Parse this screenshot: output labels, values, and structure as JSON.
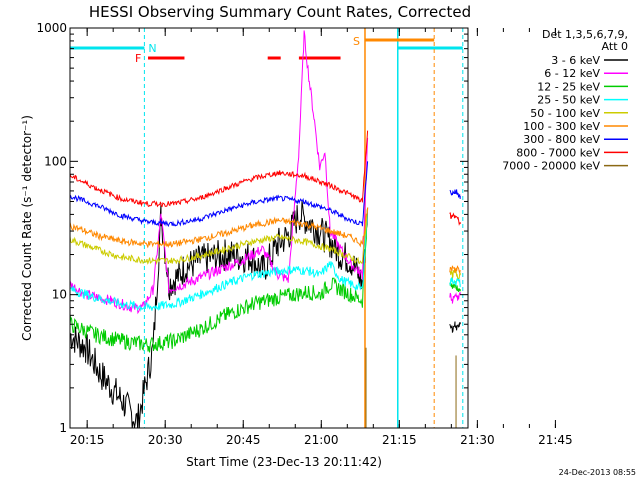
{
  "chart_data": {
    "type": "line",
    "title": "HESSI Observing Summary Count Rates, Corrected",
    "xlabel": "Start Time (23-Dec-13 20:11:42)",
    "ylabel": "Corrected Count Rate (s⁻¹ detector⁻¹)",
    "yscale": "log",
    "xlim_minutes": [
      0,
      76.5
    ],
    "ylim": [
      1,
      1000
    ],
    "x_ticks": [
      "20:15",
      "20:30",
      "20:45",
      "21:00",
      "21:15",
      "21:30",
      "21:45"
    ],
    "y_ticks": [
      "1",
      "10",
      "100",
      "1000"
    ],
    "legend_header": [
      "Det 1,3,5,6,7,9,",
      "Att 0"
    ],
    "series": [
      {
        "name": "3 - 6 keV",
        "color": "#000000",
        "x": [
          0,
          3,
          6,
          10,
          13,
          16,
          17.5,
          19,
          21,
          22,
          25,
          30,
          35,
          37,
          40,
          42,
          44,
          46,
          48,
          50,
          52,
          54,
          55.5,
          56.2,
          57.2
        ],
        "y": [
          5,
          4,
          2.5,
          1.6,
          1.1,
          4,
          40,
          12,
          14,
          16,
          18,
          20,
          19,
          15,
          24,
          28,
          40,
          35,
          30,
          25,
          20,
          18,
          14,
          12,
          45
        ]
      },
      {
        "name": "6 - 12 keV",
        "color": "#ff00ff",
        "x": [
          0,
          3,
          8,
          12,
          14,
          16,
          17.5,
          19,
          22,
          28,
          33,
          37,
          40,
          42,
          44,
          45,
          46,
          47,
          48,
          49,
          50,
          52,
          54,
          55.5,
          56.2,
          57.2
        ],
        "y": [
          12,
          10,
          9,
          8,
          8,
          11,
          40,
          11,
          12,
          15,
          18,
          22,
          14,
          13,
          120,
          900,
          400,
          200,
          90,
          120,
          30,
          22,
          17,
          15,
          14,
          150
        ]
      },
      {
        "name": "12 - 25 keV",
        "color": "#00cc00",
        "x": [
          0,
          5,
          10,
          15,
          20,
          25,
          30,
          35,
          40,
          43,
          46,
          48,
          50,
          52,
          54,
          56.2,
          57.2
        ],
        "y": [
          6,
          5,
          4.5,
          4.2,
          4.5,
          5.5,
          7,
          8.5,
          9.5,
          10,
          10.5,
          10,
          12,
          11,
          10,
          9,
          45
        ]
      },
      {
        "name": "25 - 50 keV",
        "color": "#00ffff",
        "x": [
          0,
          5,
          10,
          15,
          20,
          25,
          30,
          35,
          40,
          43,
          46,
          48,
          50,
          52,
          54,
          56.2,
          57.2
        ],
        "y": [
          11,
          9.5,
          8.5,
          8,
          8.5,
          10,
          12,
          14,
          15,
          15.5,
          15,
          14,
          17,
          13,
          12,
          11,
          45
        ]
      },
      {
        "name": "50 - 100 keV",
        "color": "#cccc00",
        "x": [
          0,
          5,
          10,
          15,
          20,
          25,
          30,
          35,
          40,
          45,
          50,
          54,
          56.2,
          57.2
        ],
        "y": [
          26,
          22,
          19,
          18,
          18,
          19.5,
          22,
          25,
          27,
          25,
          22,
          19,
          17,
          45
        ]
      },
      {
        "name": "100 - 300 keV",
        "color": "#ff8800",
        "x": [
          0,
          5,
          10,
          15,
          20,
          25,
          30,
          35,
          40,
          45,
          50,
          54,
          56.2,
          57.2
        ],
        "y": [
          33,
          28,
          25,
          24,
          24,
          26,
          29,
          33,
          36,
          34,
          30,
          27,
          24,
          45
        ]
      },
      {
        "name": "300 - 800 keV",
        "color": "#0000ff",
        "x": [
          0,
          5,
          10,
          15,
          20,
          25,
          30,
          35,
          40,
          45,
          50,
          54,
          56.2,
          57.2
        ],
        "y": [
          55,
          47,
          39,
          35,
          34,
          37,
          43,
          49,
          53,
          50,
          43,
          36,
          34,
          100
        ]
      },
      {
        "name": "800 - 7000 keV",
        "color": "#ff0000",
        "x": [
          0,
          5,
          10,
          15,
          20,
          25,
          30,
          35,
          40,
          45,
          50,
          54,
          56.2,
          57.2
        ],
        "y": [
          78,
          63,
          52,
          48,
          48,
          53,
          63,
          74,
          82,
          78,
          66,
          56,
          50,
          170
        ]
      },
      {
        "name": "7000 - 20000 keV",
        "color": "#8b6914",
        "x": [],
        "y": []
      }
    ],
    "late_segment": {
      "x": [
        73,
        73.5,
        74,
        74.5,
        75
      ],
      "series": [
        {
          "color": "#000000",
          "y": [
            6,
            5.5,
            6,
            5.5,
            6
          ]
        },
        {
          "color": "#ff00ff",
          "y": [
            10,
            9,
            10,
            9.5,
            10
          ]
        },
        {
          "color": "#00cc00",
          "y": [
            12,
            11,
            12,
            11,
            11
          ]
        },
        {
          "color": "#00ffff",
          "y": [
            12,
            13,
            12,
            13,
            12
          ]
        },
        {
          "color": "#cccc00",
          "y": [
            15,
            14,
            15,
            14,
            14
          ]
        },
        {
          "color": "#ff8800",
          "y": [
            15,
            16,
            15,
            16,
            15
          ]
        },
        {
          "color": "#0000ff",
          "y": [
            60,
            58,
            60,
            58,
            55
          ]
        },
        {
          "color": "#ff0000",
          "y": [
            40,
            38,
            40,
            36,
            35
          ]
        }
      ]
    },
    "annotations": {
      "night_label": "N",
      "flare_label": "F",
      "saa_label": "S"
    },
    "timestamp": "24-Dec-2013 08:55"
  }
}
